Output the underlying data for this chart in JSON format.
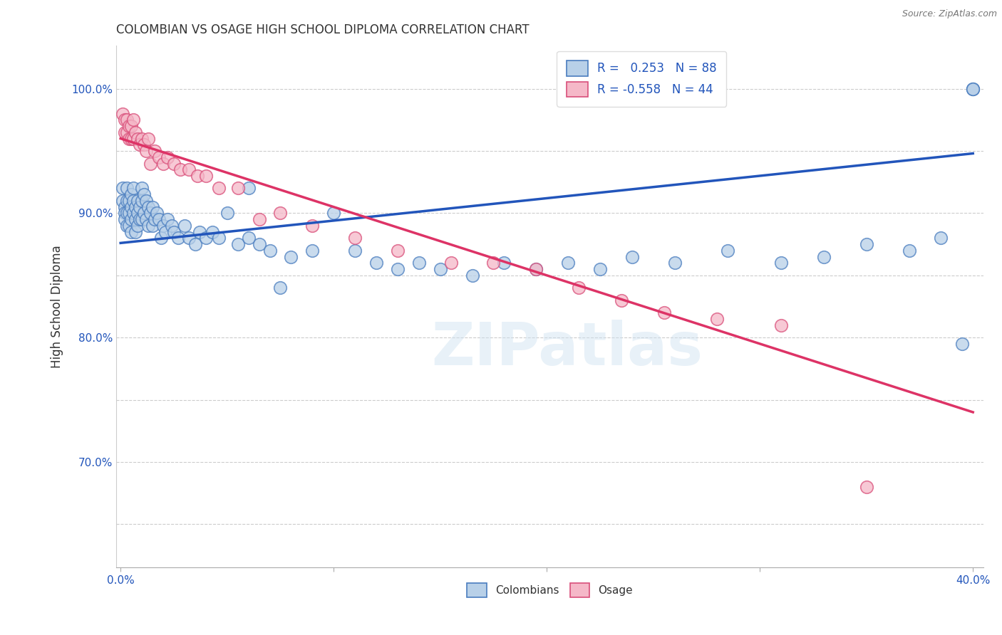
{
  "title": "COLOMBIAN VS OSAGE HIGH SCHOOL DIPLOMA CORRELATION CHART",
  "source": "Source: ZipAtlas.com",
  "ylabel_label": "High School Diploma",
  "xlim": [
    -0.002,
    0.405
  ],
  "ylim": [
    0.615,
    1.035
  ],
  "blue_R": 0.253,
  "blue_N": 88,
  "pink_R": -0.558,
  "pink_N": 44,
  "blue_color": "#b8d0e8",
  "pink_color": "#f5b8c8",
  "blue_edge_color": "#4a7dbf",
  "pink_edge_color": "#d94f7a",
  "blue_line_color": "#2255bb",
  "pink_line_color": "#dd3366",
  "legend_label_blue": "Colombians",
  "legend_label_pink": "Osage",
  "watermark": "ZIPatlas",
  "blue_line_x": [
    0.0,
    0.4
  ],
  "blue_line_y": [
    0.876,
    0.948
  ],
  "pink_line_x": [
    0.0,
    0.4
  ],
  "pink_line_y": [
    0.96,
    0.74
  ],
  "x_tick_pos": [
    0.0,
    0.1,
    0.2,
    0.3,
    0.4
  ],
  "x_tick_labels": [
    "0.0%",
    "",
    "",
    "",
    "40.0%"
  ],
  "y_tick_pos": [
    0.65,
    0.7,
    0.75,
    0.8,
    0.85,
    0.9,
    0.95,
    1.0
  ],
  "y_tick_labels": [
    "",
    "70.0%",
    "",
    "80.0%",
    "",
    "90.0%",
    "",
    "100.0%"
  ],
  "blue_x": [
    0.001,
    0.001,
    0.002,
    0.002,
    0.002,
    0.003,
    0.003,
    0.003,
    0.003,
    0.004,
    0.004,
    0.004,
    0.005,
    0.005,
    0.005,
    0.005,
    0.006,
    0.006,
    0.006,
    0.007,
    0.007,
    0.007,
    0.008,
    0.008,
    0.008,
    0.009,
    0.009,
    0.01,
    0.01,
    0.01,
    0.011,
    0.011,
    0.012,
    0.012,
    0.013,
    0.013,
    0.014,
    0.015,
    0.015,
    0.016,
    0.017,
    0.018,
    0.019,
    0.02,
    0.021,
    0.022,
    0.024,
    0.025,
    0.027,
    0.03,
    0.032,
    0.035,
    0.037,
    0.04,
    0.043,
    0.046,
    0.05,
    0.055,
    0.06,
    0.065,
    0.07,
    0.08,
    0.09,
    0.1,
    0.11,
    0.12,
    0.13,
    0.14,
    0.15,
    0.165,
    0.18,
    0.195,
    0.21,
    0.225,
    0.24,
    0.26,
    0.285,
    0.31,
    0.33,
    0.35,
    0.37,
    0.385,
    0.395,
    0.4,
    0.4,
    0.4,
    0.06,
    0.075
  ],
  "blue_y": [
    0.92,
    0.91,
    0.905,
    0.9,
    0.895,
    0.92,
    0.91,
    0.9,
    0.89,
    0.91,
    0.9,
    0.89,
    0.915,
    0.905,
    0.895,
    0.885,
    0.92,
    0.91,
    0.9,
    0.905,
    0.895,
    0.885,
    0.91,
    0.9,
    0.89,
    0.905,
    0.895,
    0.92,
    0.91,
    0.895,
    0.915,
    0.9,
    0.91,
    0.895,
    0.905,
    0.89,
    0.9,
    0.905,
    0.89,
    0.895,
    0.9,
    0.895,
    0.88,
    0.89,
    0.885,
    0.895,
    0.89,
    0.885,
    0.88,
    0.89,
    0.88,
    0.875,
    0.885,
    0.88,
    0.885,
    0.88,
    0.9,
    0.875,
    0.88,
    0.875,
    0.87,
    0.865,
    0.87,
    0.9,
    0.87,
    0.86,
    0.855,
    0.86,
    0.855,
    0.85,
    0.86,
    0.855,
    0.86,
    0.855,
    0.865,
    0.86,
    0.87,
    0.86,
    0.865,
    0.875,
    0.87,
    0.88,
    0.795,
    1.0,
    1.0,
    1.0,
    0.92,
    0.84
  ],
  "pink_x": [
    0.001,
    0.002,
    0.002,
    0.003,
    0.003,
    0.004,
    0.004,
    0.005,
    0.005,
    0.006,
    0.006,
    0.007,
    0.008,
    0.009,
    0.01,
    0.011,
    0.012,
    0.013,
    0.014,
    0.016,
    0.018,
    0.02,
    0.022,
    0.025,
    0.028,
    0.032,
    0.036,
    0.04,
    0.046,
    0.055,
    0.065,
    0.075,
    0.09,
    0.11,
    0.13,
    0.155,
    0.175,
    0.195,
    0.215,
    0.235,
    0.255,
    0.28,
    0.31,
    0.35
  ],
  "pink_y": [
    0.98,
    0.975,
    0.965,
    0.975,
    0.965,
    0.97,
    0.96,
    0.97,
    0.96,
    0.975,
    0.96,
    0.965,
    0.96,
    0.955,
    0.96,
    0.955,
    0.95,
    0.96,
    0.94,
    0.95,
    0.945,
    0.94,
    0.945,
    0.94,
    0.935,
    0.935,
    0.93,
    0.93,
    0.92,
    0.92,
    0.895,
    0.9,
    0.89,
    0.88,
    0.87,
    0.86,
    0.86,
    0.855,
    0.84,
    0.83,
    0.82,
    0.815,
    0.81,
    0.68
  ]
}
